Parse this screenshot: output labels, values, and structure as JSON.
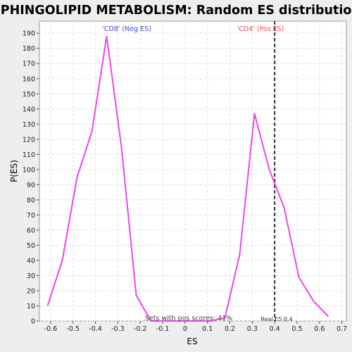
{
  "chart_data": {
    "type": "line",
    "title": "SPHINGOLIPID METABOLISM: Random ES distribution",
    "xlabel": "ES",
    "ylabel": "P(ES)",
    "xlim": [
      -0.65,
      0.72
    ],
    "ylim": [
      0,
      198
    ],
    "x_ticks": [
      -0.6,
      -0.5,
      -0.4,
      -0.3,
      -0.2,
      -0.1,
      0,
      0.1,
      0.2,
      0.3,
      0.4,
      0.5,
      0.6,
      0.7
    ],
    "x_tick_labels": [
      "-0.6",
      "-0.5",
      "-0.4",
      "-0.3",
      "-0.2",
      "-0.1",
      "0",
      "0.1",
      "0.2",
      "0.3",
      "0.4",
      "0.5",
      "0.6",
      "0.7"
    ],
    "y_ticks": [
      0,
      10,
      20,
      30,
      40,
      50,
      60,
      70,
      80,
      90,
      100,
      110,
      120,
      130,
      140,
      150,
      160,
      170,
      180,
      190
    ],
    "y_tick_labels": [
      "0",
      "10",
      "20",
      "30",
      "40",
      "50",
      "60",
      "70",
      "80",
      "90",
      "100",
      "110",
      "120",
      "130",
      "140",
      "150",
      "160",
      "170",
      "180",
      "190"
    ],
    "grid": true,
    "series": [
      {
        "color": "#ee44ee",
        "x": [
          -0.614,
          -0.548,
          -0.482,
          -0.416,
          -0.35,
          -0.284,
          -0.218,
          -0.152,
          -0.086,
          -0.02,
          0.046,
          0.112,
          0.178,
          0.244,
          0.31,
          0.376,
          0.442,
          0.508,
          0.574,
          0.64
        ],
        "y": [
          10,
          40,
          95,
          125,
          188,
          115,
          17,
          0,
          0,
          0,
          0,
          0,
          2,
          44,
          137,
          100,
          75,
          29,
          13,
          3
        ]
      }
    ],
    "reference_line": {
      "x": 0.4,
      "color": "#333333",
      "style": "dashed"
    },
    "annotations": {
      "neg_label": "'CD8' (Neg ES)",
      "neg_color": "#4444dd",
      "pos_label": "'CD4' (Pos ES)",
      "pos_color": "#ee4444",
      "pos_scores": "Sets with pos scores: 41%",
      "real_es": "Real ES 0.4"
    }
  }
}
